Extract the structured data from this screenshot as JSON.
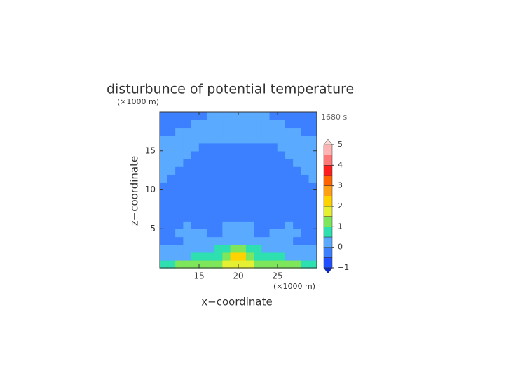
{
  "chart_data": {
    "type": "contour",
    "title": "disturbunce of potential temperature",
    "ylabel": "z−coordinate",
    "xlabel": "x−coordinate",
    "yunit": "(×1000 m)",
    "xunit": "(×1000 m)",
    "time_label": "1680 s",
    "xlim": [
      10,
      30
    ],
    "ylim": [
      0,
      20
    ],
    "xticks": [
      15,
      20,
      25
    ],
    "yticks": [
      5,
      10,
      15
    ],
    "grid_x": [
      10,
      11,
      12,
      13,
      14,
      15,
      16,
      17,
      18,
      19,
      20,
      21,
      22,
      23,
      24,
      25,
      26,
      27,
      28,
      29,
      30
    ],
    "grid_z": [
      0,
      1,
      2,
      3,
      4,
      5,
      6,
      7,
      8,
      9,
      10,
      11,
      12,
      13,
      14,
      15,
      16,
      17,
      18,
      19,
      20
    ],
    "field": [
      [
        0.6,
        0.8,
        1.1,
        1.2,
        1.2,
        1.3,
        1.3,
        1.4,
        1.6,
        1.8,
        1.8,
        1.6,
        1.4,
        1.3,
        1.3,
        1.2,
        1.2,
        1.1,
        0.8,
        0.6
      ],
      [
        0.2,
        0.2,
        0.3,
        0.4,
        0.5,
        0.6,
        0.7,
        0.9,
        1.2,
        2.2,
        2.2,
        1.2,
        0.9,
        0.7,
        0.6,
        0.5,
        0.4,
        0.3,
        0.2,
        0.2
      ],
      [
        0.1,
        0.1,
        0.2,
        0.2,
        0.3,
        0.3,
        0.4,
        0.6,
        0.8,
        1.1,
        1.1,
        0.8,
        0.6,
        0.4,
        0.3,
        0.3,
        0.2,
        0.2,
        0.1,
        0.1
      ],
      [
        -0.2,
        -0.2,
        -0.1,
        0.1,
        0.2,
        0.2,
        0.2,
        0.1,
        0.2,
        0.3,
        0.3,
        0.2,
        0.1,
        0.2,
        0.2,
        0.2,
        0.1,
        -0.1,
        -0.2,
        -0.2
      ],
      [
        -0.2,
        -0.1,
        0.1,
        0.2,
        0.2,
        0.1,
        -0.1,
        -0.2,
        0.1,
        0.2,
        0.2,
        0.1,
        -0.2,
        -0.1,
        0.1,
        0.2,
        0.2,
        0.1,
        -0.1,
        -0.2
      ],
      [
        -0.3,
        -0.2,
        -0.1,
        0.1,
        -0.1,
        -0.2,
        -0.3,
        -0.3,
        0.1,
        0.2,
        0.2,
        0.1,
        -0.3,
        -0.3,
        -0.2,
        -0.1,
        0.1,
        -0.1,
        -0.2,
        -0.3
      ],
      [
        -0.3,
        -0.3,
        -0.3,
        -0.3,
        -0.3,
        -0.3,
        -0.3,
        -0.3,
        -0.3,
        -0.3,
        -0.3,
        -0.3,
        -0.3,
        -0.3,
        -0.3,
        -0.3,
        -0.3,
        -0.3,
        -0.3,
        -0.3
      ],
      [
        -0.3,
        -0.3,
        -0.3,
        -0.3,
        -0.3,
        -0.3,
        -0.3,
        -0.3,
        -0.3,
        -0.3,
        -0.3,
        -0.3,
        -0.3,
        -0.3,
        -0.3,
        -0.3,
        -0.3,
        -0.3,
        -0.3,
        -0.3
      ],
      [
        -0.3,
        -0.3,
        -0.3,
        -0.3,
        -0.3,
        -0.3,
        -0.3,
        -0.3,
        -0.3,
        -0.3,
        -0.3,
        -0.3,
        -0.3,
        -0.3,
        -0.3,
        -0.3,
        -0.3,
        -0.3,
        -0.3,
        -0.3
      ],
      [
        -0.3,
        -0.3,
        -0.3,
        -0.3,
        -0.3,
        -0.3,
        -0.3,
        -0.3,
        -0.3,
        -0.3,
        -0.3,
        -0.3,
        -0.3,
        -0.3,
        -0.3,
        -0.3,
        -0.3,
        -0.3,
        -0.3,
        -0.3
      ],
      [
        -0.3,
        -0.3,
        -0.3,
        -0.3,
        -0.3,
        -0.3,
        -0.3,
        -0.3,
        -0.3,
        -0.3,
        -0.3,
        -0.3,
        -0.3,
        -0.3,
        -0.3,
        -0.3,
        -0.3,
        -0.3,
        -0.3,
        -0.3
      ],
      [
        0.1,
        -0.2,
        -0.3,
        -0.3,
        -0.3,
        -0.3,
        -0.3,
        -0.3,
        -0.3,
        -0.3,
        -0.3,
        -0.3,
        -0.3,
        -0.3,
        -0.3,
        -0.3,
        -0.3,
        -0.3,
        -0.2,
        0.1
      ],
      [
        0.2,
        0.1,
        -0.2,
        -0.3,
        -0.3,
        -0.3,
        -0.3,
        -0.3,
        -0.3,
        -0.3,
        -0.3,
        -0.3,
        -0.3,
        -0.3,
        -0.3,
        -0.3,
        -0.3,
        -0.2,
        0.1,
        0.2
      ],
      [
        0.2,
        0.2,
        0.1,
        -0.2,
        -0.3,
        -0.3,
        -0.3,
        -0.3,
        -0.3,
        -0.3,
        -0.3,
        -0.3,
        -0.3,
        -0.3,
        -0.3,
        -0.3,
        -0.2,
        0.1,
        0.2,
        0.2
      ],
      [
        0.2,
        0.2,
        0.2,
        0.1,
        -0.2,
        -0.3,
        -0.3,
        -0.3,
        -0.3,
        -0.3,
        -0.3,
        -0.3,
        -0.3,
        -0.3,
        -0.3,
        -0.2,
        0.1,
        0.2,
        0.2,
        0.2
      ],
      [
        0.2,
        0.2,
        0.2,
        0.2,
        0.1,
        -0.2,
        -0.3,
        -0.3,
        -0.3,
        -0.3,
        -0.3,
        -0.3,
        -0.3,
        -0.3,
        -0.2,
        0.1,
        0.2,
        0.2,
        0.2,
        0.2
      ],
      [
        0.2,
        0.2,
        0.2,
        0.2,
        0.2,
        0.2,
        0.2,
        0.2,
        0.2,
        0.2,
        0.2,
        0.2,
        0.2,
        0.2,
        0.2,
        0.2,
        0.2,
        0.2,
        0.2,
        0.2
      ],
      [
        -0.2,
        -0.2,
        0.1,
        0.2,
        0.2,
        0.2,
        0.2,
        0.2,
        0.2,
        0.2,
        0.2,
        0.2,
        0.2,
        0.2,
        0.2,
        0.2,
        0.2,
        0.1,
        -0.2,
        -0.2
      ],
      [
        -0.3,
        -0.3,
        -0.2,
        -0.2,
        0.1,
        0.2,
        0.2,
        0.2,
        0.2,
        0.2,
        0.2,
        0.2,
        0.2,
        0.2,
        0.2,
        0.1,
        -0.2,
        -0.2,
        -0.3,
        -0.3
      ],
      [
        -0.3,
        -0.3,
        -0.3,
        -0.2,
        -0.2,
        -0.1,
        0.2,
        0.2,
        0.2,
        0.2,
        0.2,
        0.2,
        0.2,
        0.2,
        -0.1,
        -0.2,
        -0.2,
        -0.3,
        -0.3,
        -0.3
      ]
    ],
    "levels": [
      -1,
      -0.5,
      0,
      0.5,
      1,
      1.5,
      2,
      2.5,
      3,
      3.5,
      4,
      4.5,
      5
    ],
    "colors": [
      "#2050ff",
      "#3c80ff",
      "#5aaaff",
      "#2ee0b0",
      "#7ee65a",
      "#e6f032",
      "#ffd200",
      "#ffa014",
      "#ff6400",
      "#ff1e1e",
      "#ff7878",
      "#ffb4b4"
    ],
    "extend_colors": [
      "#0a28c8",
      "#ffd8d8"
    ],
    "colorbar_ticks": [
      {
        "value": -1,
        "label": "−1"
      },
      0,
      1,
      2,
      3,
      4,
      5
    ]
  }
}
